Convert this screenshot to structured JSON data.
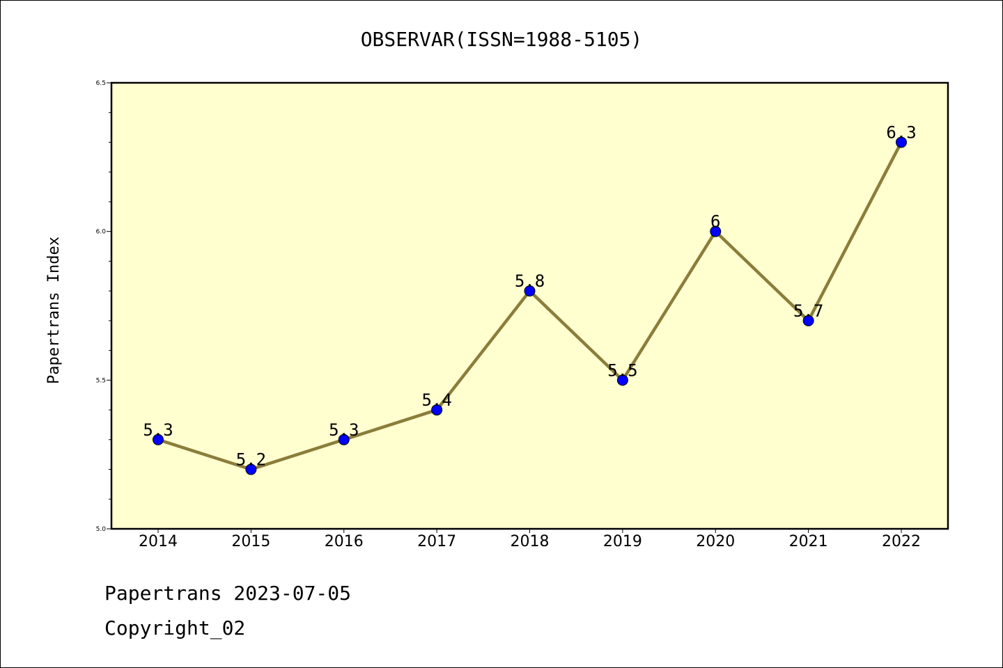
{
  "chart_data": {
    "type": "line",
    "title": "OBSERVAR(ISSN=1988-5105)",
    "xlabel": "",
    "ylabel": "Papertrans Index",
    "categories": [
      "2014",
      "2015",
      "2016",
      "2017",
      "2018",
      "2019",
      "2020",
      "2021",
      "2022"
    ],
    "series": [
      {
        "values": [
          5.3,
          5.2,
          5.3,
          5.4,
          5.8,
          5.5,
          6.0,
          5.7,
          6.3
        ],
        "labels": [
          "5.3",
          "5.2",
          "5.3",
          "5.4",
          "5.8",
          "5.5",
          "6",
          "5.7",
          "6.3"
        ]
      }
    ],
    "ylim": [
      5.0,
      6.5
    ],
    "yticks": [
      "5.0",
      "5.5",
      "6.0",
      "6.5"
    ],
    "grid": false,
    "colors": {
      "plot_background": "#ffffd0",
      "line": "#8b7d3a",
      "marker": "#0000ff"
    }
  },
  "footer": {
    "line1": "Papertrans 2023-07-05",
    "line2": "Copyright_02"
  }
}
